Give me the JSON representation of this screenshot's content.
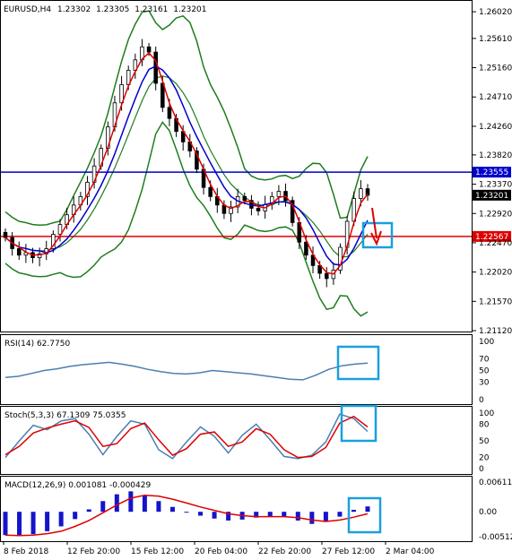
{
  "chart_data": [
    {
      "type": "candlestick",
      "title": "EURUSD,H4",
      "ohlc": {
        "open": "1.23302",
        "high": "1.23305",
        "low": "1.23161",
        "close": "1.23201"
      },
      "price_ticks": [
        "1.26020",
        "1.25610",
        "1.25160",
        "1.24710",
        "1.24260",
        "1.23820",
        "1.23370",
        "1.22920",
        "1.22470",
        "1.22020",
        "1.21570",
        "1.21120"
      ],
      "ylim": [
        1.2112,
        1.2609
      ],
      "x_ticks": [
        "8 Feb 2018",
        "12 Feb 20:00",
        "15 Feb 12:00",
        "20 Feb 04:00",
        "22 Feb 20:00",
        "27 Feb 12:00",
        "2 Mar 04:00"
      ],
      "horizontal_levels": [
        {
          "value": "1.23555",
          "color": "#0000cc"
        },
        {
          "value": "1.22567",
          "color": "#dd0000"
        }
      ],
      "current_price": "1.23201",
      "close_series": [
        1.2255,
        1.2238,
        1.2228,
        1.2232,
        1.2224,
        1.223,
        1.2238,
        1.226,
        1.2275,
        1.229,
        1.2305,
        1.2318,
        1.234,
        1.2365,
        1.2392,
        1.2425,
        1.2462,
        1.249,
        1.2512,
        1.2528,
        1.2548,
        1.254,
        1.2492,
        1.2455,
        1.2438,
        1.2418,
        1.2402,
        1.2388,
        1.236,
        1.2332,
        1.2318,
        1.2305,
        1.2292,
        1.2302,
        1.2318,
        1.2312,
        1.23,
        1.2296,
        1.2306,
        1.2318,
        1.2326,
        1.2312,
        1.2278,
        1.2248,
        1.2228,
        1.2212,
        1.22,
        1.2192,
        1.2205,
        1.224,
        1.228,
        1.2315,
        1.233,
        1.232
      ],
      "indicators": [
        "Bollinger Bands",
        "Moving Average (red)",
        "Moving Average (blue)"
      ]
    },
    {
      "type": "line",
      "title": "RSI(14) 62.7750",
      "ticks": [
        "100",
        "70",
        "50",
        "30",
        "0"
      ],
      "ylim": [
        0,
        100
      ],
      "series": [
        {
          "name": "RSI(14)",
          "values": [
            38,
            40,
            45,
            50,
            53,
            57,
            60,
            62,
            64,
            61,
            57,
            52,
            48,
            45,
            44,
            46,
            50,
            48,
            46,
            44,
            41,
            38,
            35,
            34,
            42,
            52,
            58,
            61,
            62.8
          ]
        }
      ]
    },
    {
      "type": "line",
      "title": "Stoch(5,3,3) 67.1309 75.0355",
      "ticks": [
        "100",
        "80",
        "50",
        "20",
        "0"
      ],
      "ylim": [
        0,
        100
      ],
      "series": [
        {
          "name": "Stoch main",
          "values": [
            20,
            50,
            78,
            70,
            86,
            90,
            62,
            25,
            58,
            86,
            80,
            34,
            18,
            48,
            75,
            58,
            28,
            60,
            80,
            52,
            22,
            18,
            24,
            48,
            98,
            90,
            67
          ]
        },
        {
          "name": "Stoch signal",
          "values": [
            25,
            40,
            64,
            73,
            80,
            86,
            74,
            40,
            45,
            72,
            82,
            52,
            24,
            36,
            62,
            66,
            40,
            48,
            72,
            62,
            34,
            20,
            22,
            38,
            82,
            94,
            75
          ]
        }
      ]
    },
    {
      "type": "bar",
      "title": "MACD(12,26,9) 0.001081 -0.000429",
      "ticks": [
        "0.006114",
        "0.00",
        "-0.005126"
      ],
      "ylim": [
        -0.005126,
        0.006114
      ],
      "series": [
        {
          "name": "MACD histogram",
          "values": [
            -0.0048,
            -0.005,
            -0.0046,
            -0.004,
            -0.003,
            -0.0015,
            0.0005,
            0.0022,
            0.0036,
            0.0042,
            0.0034,
            0.0022,
            0.001,
            0.0,
            -0.0008,
            -0.0014,
            -0.0018,
            -0.0016,
            -0.0012,
            -0.001,
            -0.001,
            -0.0018,
            -0.0025,
            -0.002,
            -0.001,
            0.0004,
            0.0011
          ]
        },
        {
          "name": "Signal",
          "values": [
            -0.0048,
            -0.0049,
            -0.0048,
            -0.0045,
            -0.004,
            -0.003,
            -0.0018,
            -0.0002,
            0.0014,
            0.0028,
            0.0034,
            0.0032,
            0.0026,
            0.0018,
            0.001,
            0.0003,
            -0.0004,
            -0.0008,
            -0.001,
            -0.001,
            -0.001,
            -0.0012,
            -0.0017,
            -0.002,
            -0.0017,
            -0.0011,
            -0.0004
          ]
        }
      ]
    }
  ],
  "annotations": {
    "box_color": "#1a9fdf",
    "arrow_color": "#dd0000"
  }
}
